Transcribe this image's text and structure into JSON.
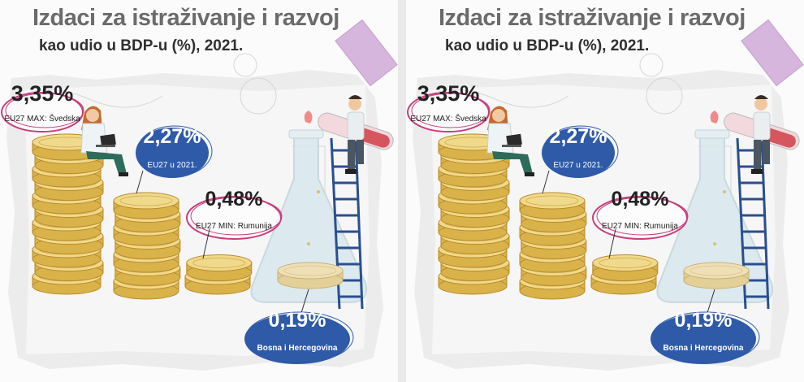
{
  "chart_data": {
    "type": "bar",
    "title": "Izdaci za istraživanje i razvoj",
    "subtitle": "kao udio u BDP-u (%), 2021.",
    "categories": [
      "EU27 MAX: Švedska",
      "EU27 u 2021.",
      "EU27 MIN: Rumunija",
      "Bosna i Hercegovina"
    ],
    "values": [
      3.35,
      2.27,
      0.48,
      0.19
    ],
    "value_labels": [
      "3,35%",
      "2,27%",
      "0,48%",
      "0,19%"
    ],
    "unit": "%"
  },
  "colors": {
    "coin": "#d9b24a",
    "coin_dark": "#b88a2a",
    "coin_light": "#f0d98a",
    "bih_coin": "#eedfb5",
    "pink": "#c93d7d",
    "blue": "#2e5aa8",
    "title_gray": "#6b6b6b",
    "flask": "#d8e8ee",
    "ladder": "#2a4f8f",
    "test_tube": "#d5565f"
  },
  "icons": [
    "coin-stack",
    "flask",
    "ladder",
    "test-tube",
    "laptop",
    "scientist-woman",
    "scientist-man"
  ]
}
